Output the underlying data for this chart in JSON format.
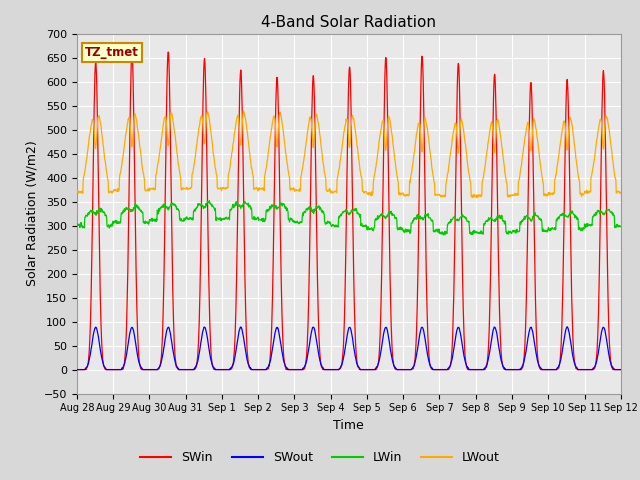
{
  "title": "4-Band Solar Radiation",
  "xlabel": "Time",
  "ylabel": "Solar Radiation (W/m2)",
  "ylim": [
    -50,
    700
  ],
  "yticks": [
    -50,
    0,
    50,
    100,
    150,
    200,
    250,
    300,
    350,
    400,
    450,
    500,
    550,
    600,
    650,
    700
  ],
  "background_color": "#d8d8d8",
  "plot_bg_color": "#e8e8e8",
  "grid_color": "#ffffff",
  "annotation_text": "TZ_tmet",
  "annotation_bg": "#ffffcc",
  "annotation_border": "#cc8800",
  "legend_entries": [
    "SWin",
    "SWout",
    "LWin",
    "LWout"
  ],
  "line_colors": {
    "SWin": "#ff0000",
    "SWout": "#0000ff",
    "LWin": "#00cc00",
    "LWout": "#ffaa00"
  },
  "n_days": 15,
  "hours_per_day": 24,
  "dt_hours": 0.25,
  "tick_labels": [
    "Aug 28",
    "Aug 29",
    "Aug 30",
    "Aug 31",
    "Sep 1",
    "Sep 2",
    "Sep 3",
    "Sep 4",
    "Sep 5",
    "Sep 6",
    "Sep 7",
    "Sep 8",
    "Sep 9",
    "Sep 10",
    "Sep 11",
    "Sep 12"
  ],
  "tick_positions": [
    0,
    1,
    2,
    3,
    4,
    5,
    6,
    7,
    8,
    9,
    10,
    11,
    12,
    13,
    14,
    15
  ]
}
